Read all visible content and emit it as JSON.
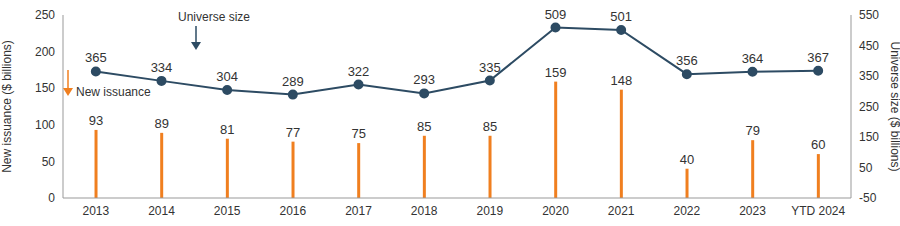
{
  "chart_data": {
    "type": "bar",
    "y_label": "New issuance ($ billions)",
    "y2_label": "Universe size ($ billions)",
    "categories": [
      "2013",
      "2014",
      "2015",
      "2016",
      "2017",
      "2018",
      "2019",
      "2020",
      "2021",
      "2022",
      "2023",
      "YTD 2024"
    ],
    "series": [
      {
        "name": "New issuance",
        "type": "bar",
        "color": "#f07f1f",
        "values": [
          93,
          89,
          81,
          77,
          75,
          85,
          85,
          159,
          148,
          40,
          79,
          60
        ]
      },
      {
        "name": "Universe size",
        "type": "line",
        "axis": "y2",
        "color": "#2d4b63",
        "marker": "circle",
        "values": [
          365,
          334,
          304,
          289,
          322,
          293,
          335,
          509,
          501,
          356,
          364,
          367
        ]
      }
    ],
    "ylim": [
      0,
      250
    ],
    "yticks": [
      0,
      50,
      100,
      150,
      200,
      250
    ],
    "y2lim": [
      -50,
      550
    ],
    "y2ticks": [
      -50,
      50,
      150,
      250,
      350,
      450,
      550
    ],
    "grid": false,
    "legend": null,
    "data_labels": true
  }
}
